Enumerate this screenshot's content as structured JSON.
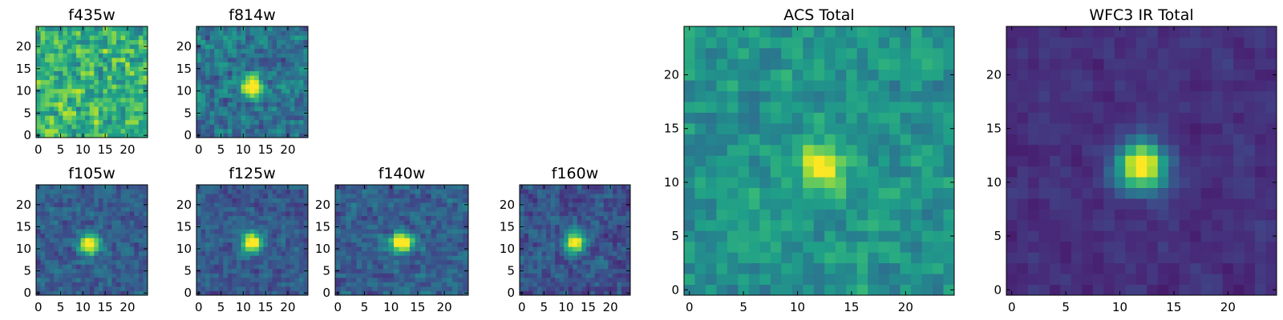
{
  "chart_data": [
    {
      "type": "heatmap",
      "title": "f435w",
      "xticks": [
        "0",
        "5",
        "10",
        "15",
        "20"
      ],
      "yticks": [
        "0",
        "5",
        "10",
        "15",
        "20"
      ],
      "xlim": [
        -0.5,
        24.5
      ],
      "ylim": [
        -0.5,
        24.5
      ],
      "grid_size": [
        25,
        25
      ],
      "colormap": "viridis",
      "source_peak": [
        12,
        11
      ],
      "peak_strength": 0.0,
      "noise": 0.6,
      "background": 0.65,
      "seed": 3
    },
    {
      "type": "heatmap",
      "title": "f814w",
      "xticks": [
        "0",
        "5",
        "10",
        "15",
        "20"
      ],
      "yticks": [
        "0",
        "5",
        "10",
        "15",
        "20"
      ],
      "xlim": [
        -0.5,
        24.5
      ],
      "ylim": [
        -0.5,
        24.5
      ],
      "grid_size": [
        25,
        25
      ],
      "colormap": "viridis",
      "source_peak": [
        12,
        11
      ],
      "peak_strength": 0.85,
      "noise": 0.45,
      "background": 0.38,
      "seed": 11
    },
    {
      "type": "heatmap",
      "title": "f105w",
      "xticks": [
        "0",
        "5",
        "10",
        "15",
        "20"
      ],
      "yticks": [
        "0",
        "5",
        "10",
        "15",
        "20"
      ],
      "xlim": [
        -0.5,
        24.5
      ],
      "ylim": [
        -0.5,
        24.5
      ],
      "grid_size": [
        25,
        25
      ],
      "colormap": "viridis",
      "source_peak": [
        11.5,
        11
      ],
      "peak_strength": 0.85,
      "noise": 0.32,
      "background": 0.3,
      "seed": 23
    },
    {
      "type": "heatmap",
      "title": "f125w",
      "xticks": [
        "0",
        "5",
        "10",
        "15",
        "20"
      ],
      "yticks": [
        "0",
        "5",
        "10",
        "15",
        "20"
      ],
      "xlim": [
        -0.5,
        24.5
      ],
      "ylim": [
        -0.5,
        24.5
      ],
      "grid_size": [
        25,
        25
      ],
      "colormap": "viridis",
      "source_peak": [
        12,
        11.5
      ],
      "peak_strength": 0.9,
      "noise": 0.3,
      "background": 0.28,
      "seed": 37
    },
    {
      "type": "heatmap",
      "title": "f140w",
      "xticks": [
        "0",
        "5",
        "10",
        "15",
        "20"
      ],
      "yticks": [
        "0",
        "5",
        "10",
        "15",
        "20"
      ],
      "xlim": [
        -0.5,
        24.5
      ],
      "ylim": [
        -0.5,
        24.5
      ],
      "grid_size": [
        25,
        25
      ],
      "colormap": "viridis",
      "source_peak": [
        12,
        11.5
      ],
      "peak_strength": 0.85,
      "noise": 0.34,
      "background": 0.3,
      "seed": 41
    },
    {
      "type": "heatmap",
      "title": "f160w",
      "xticks": [
        "0",
        "5",
        "10",
        "15",
        "20"
      ],
      "yticks": [
        "0",
        "5",
        "10",
        "15",
        "20"
      ],
      "xlim": [
        -0.5,
        24.5
      ],
      "ylim": [
        -0.5,
        24.5
      ],
      "grid_size": [
        25,
        25
      ],
      "colormap": "viridis",
      "source_peak": [
        12,
        11.5
      ],
      "peak_strength": 0.85,
      "noise": 0.34,
      "background": 0.26,
      "seed": 53
    },
    {
      "type": "heatmap",
      "title": "ACS Total",
      "xticks": [
        "0",
        "5",
        "10",
        "15",
        "20"
      ],
      "yticks": [
        "0",
        "5",
        "10",
        "15",
        "20"
      ],
      "xlim": [
        -0.5,
        24.5
      ],
      "ylim": [
        -0.5,
        24.5
      ],
      "grid_size": [
        25,
        25
      ],
      "colormap": "viridis",
      "source_peak": [
        12,
        11.5
      ],
      "peak_strength": 0.45,
      "noise": 0.35,
      "background": 0.52,
      "seed": 67
    },
    {
      "type": "heatmap",
      "title": "WFC3 IR Total",
      "xticks": [
        "0",
        "5",
        "10",
        "15",
        "20"
      ],
      "yticks": [
        "0",
        "5",
        "10",
        "15",
        "20"
      ],
      "xlim": [
        -0.5,
        24.5
      ],
      "ylim": [
        -0.5,
        24.5
      ],
      "grid_size": [
        25,
        25
      ],
      "colormap": "viridis",
      "source_peak": [
        12,
        11.5
      ],
      "peak_strength": 0.95,
      "noise": 0.14,
      "background": 0.14,
      "seed": 79
    }
  ]
}
